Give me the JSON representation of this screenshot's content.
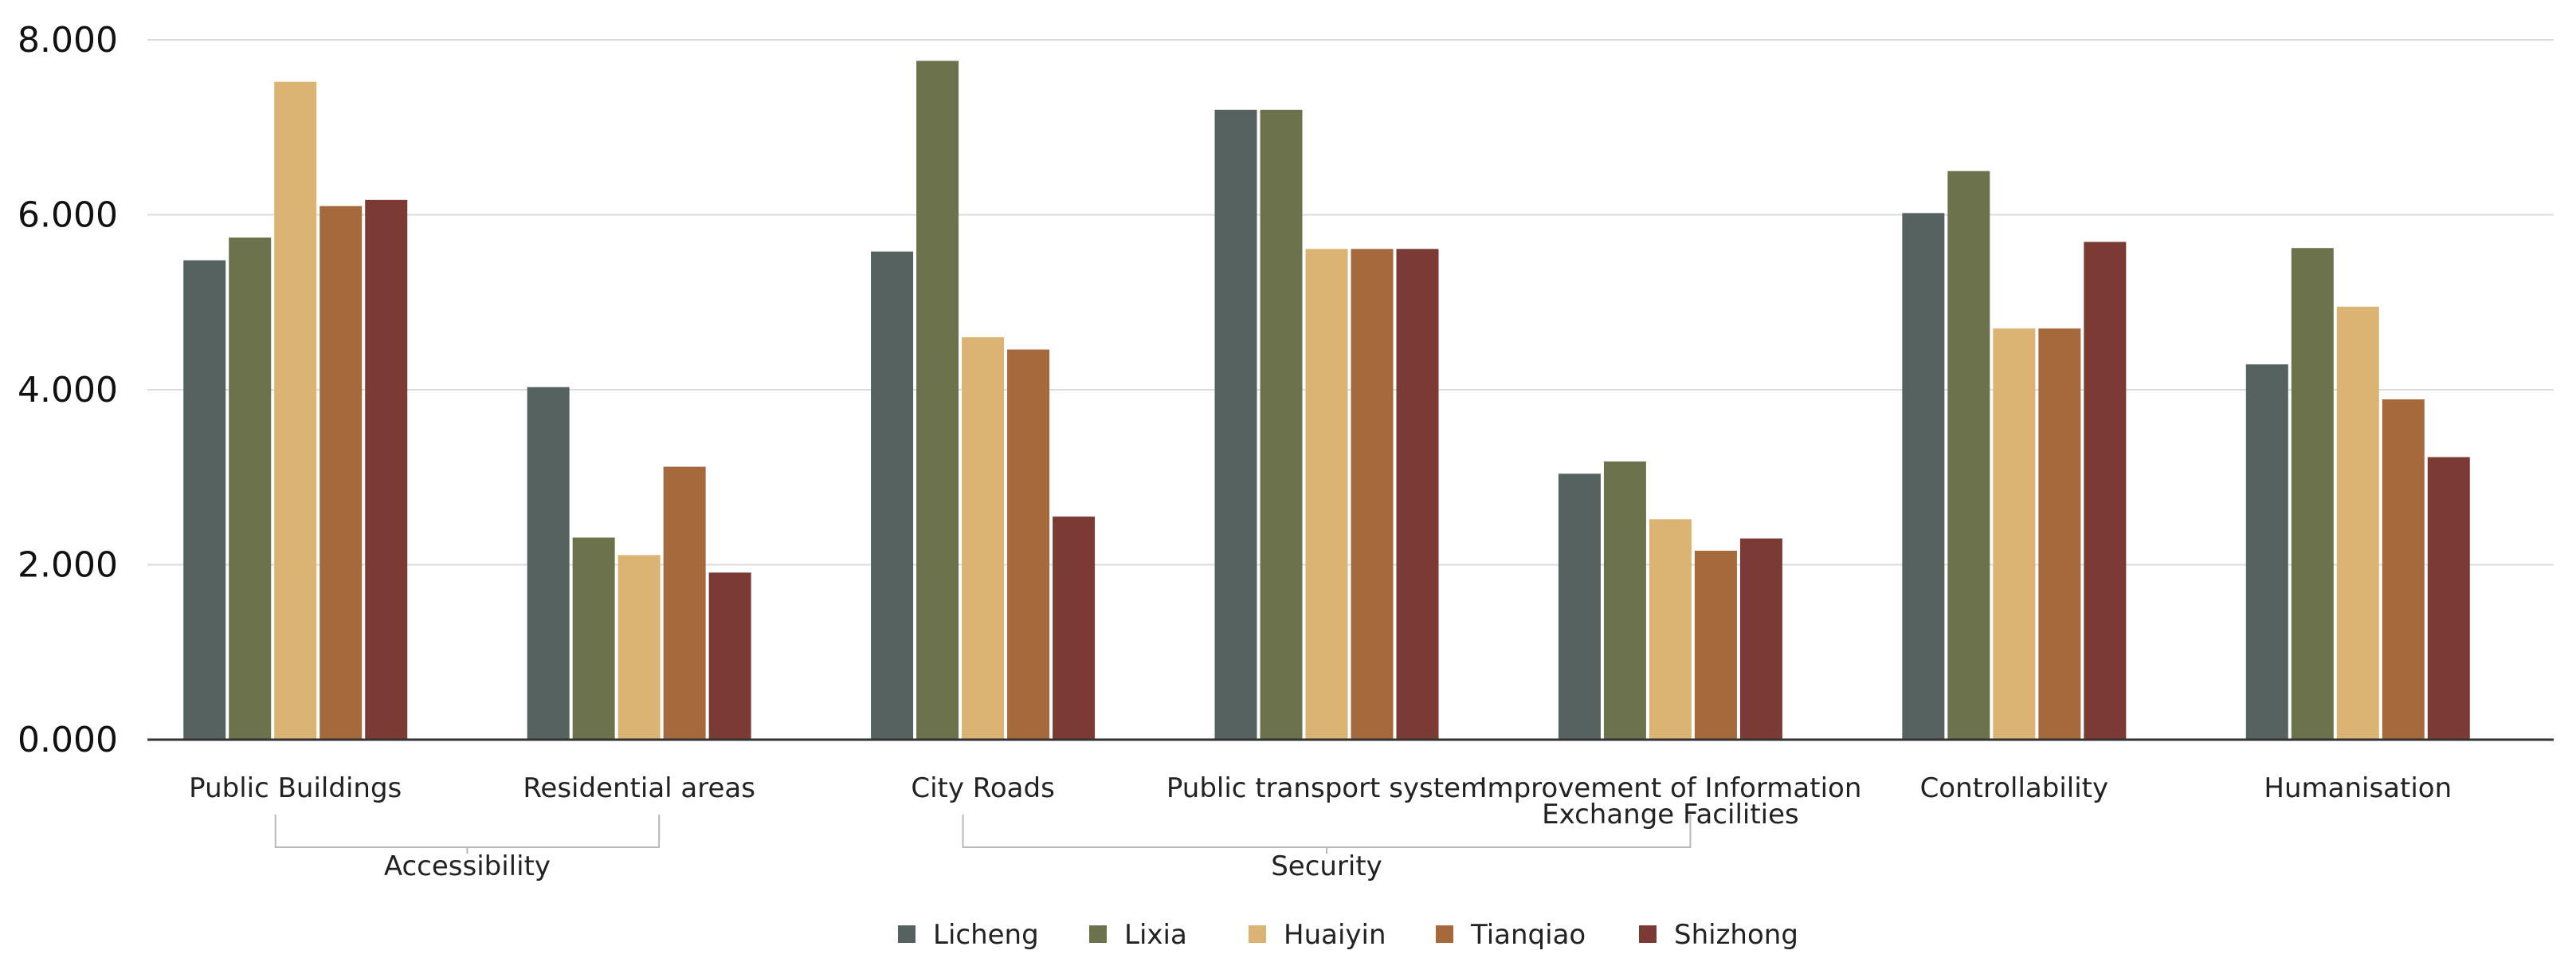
{
  "chart_data": {
    "type": "bar",
    "title": "",
    "xlabel": "",
    "ylabel": "",
    "ylim": [
      0,
      8
    ],
    "yticks": [
      0,
      2,
      4,
      6,
      8
    ],
    "ytick_labels": [
      "0.000",
      "2.000",
      "4.000",
      "6.000",
      "8.000"
    ],
    "grid": true,
    "legend_position": "bottom-center",
    "categories": [
      "Public Buildings",
      "Residential areas",
      "City Roads",
      "Public transport system",
      "Improvement of Information Exchange Facilities",
      "Controllability",
      "Humanisation"
    ],
    "category_label_lines": [
      [
        "Public Buildings"
      ],
      [
        "Residential areas"
      ],
      [
        "City Roads"
      ],
      [
        "Public transport system"
      ],
      [
        "Improvement of Information",
        "Exchange Facilities"
      ],
      [
        "Controllability"
      ],
      [
        "Humanisation"
      ]
    ],
    "groups": [
      {
        "label": "Accessibility",
        "from": 0,
        "to": 1
      },
      {
        "label": "Security",
        "from": 2,
        "to": 4
      }
    ],
    "series": [
      {
        "name": "Licheng",
        "color": "#56625f",
        "values": [
          5.48,
          4.03,
          5.58,
          7.2,
          3.04,
          6.02,
          4.29
        ]
      },
      {
        "name": "Lixia",
        "color": "#6c734c",
        "values": [
          5.74,
          2.31,
          7.76,
          7.2,
          3.18,
          6.5,
          5.62
        ]
      },
      {
        "name": "Huaiyin",
        "color": "#dbb373",
        "values": [
          7.52,
          2.11,
          4.6,
          5.61,
          2.52,
          4.7,
          4.95
        ]
      },
      {
        "name": "Tianqiao",
        "color": "#a5693b",
        "values": [
          6.1,
          3.12,
          4.46,
          5.61,
          2.16,
          4.7,
          3.89
        ]
      },
      {
        "name": "Shizhong",
        "color": "#7b3a33",
        "values": [
          6.17,
          1.91,
          2.55,
          5.61,
          2.3,
          5.69,
          3.23
        ]
      }
    ]
  }
}
